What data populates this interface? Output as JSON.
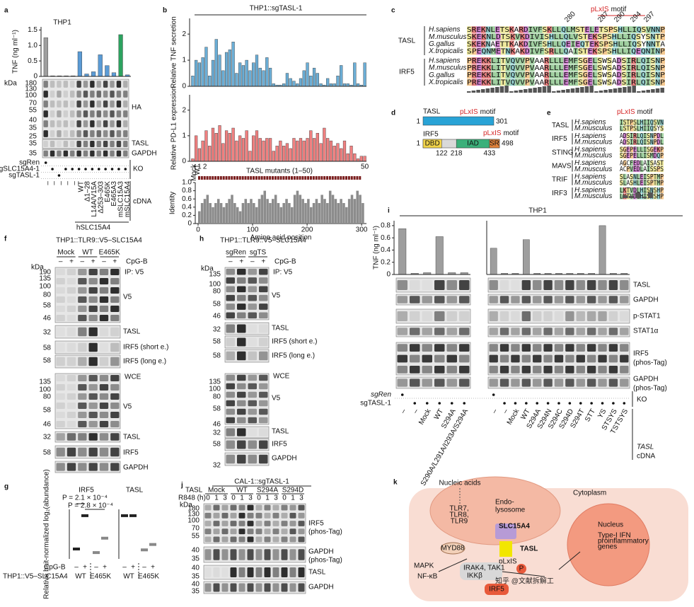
{
  "a": {
    "label": "a",
    "title": "THP1",
    "y_label": "TNF (ng ml⁻¹)",
    "ylim": [
      0,
      1.6
    ],
    "yticks": [
      0,
      0.5,
      {
        "value": 1,
        "label": "1.0"
      },
      1.5
    ],
    "values": [
      1.25,
      0.02,
      0.02,
      0.02,
      0.02,
      0.8,
      0.08,
      0.15,
      0.7,
      0.35,
      0.12,
      1.35,
      0.05
    ],
    "colors": [
      "#9e9e9e",
      "#9e9e9e",
      "#9e9e9e",
      "#9e9e9e",
      "#9e9e9e",
      "#5b9bd5",
      "#5b9bd5",
      "#5b9bd5",
      "#5b9bd5",
      "#5b9bd5",
      "#5b9bd5",
      "#2ca25f",
      "#5b9bd5"
    ],
    "kda": "kDa",
    "markers": [
      180,
      130,
      100,
      70,
      55,
      40,
      35,
      25,
      35,
      35
    ],
    "blots": [
      "HA",
      "TASL",
      "GAPDH"
    ],
    "rows": [
      "sgRen",
      "sgSLC15A4-1",
      "sgTASL-1"
    ],
    "ko": "KO",
    "cdna": "cDNA",
    "cdna_labels": [
      "–",
      "–",
      "–",
      "–",
      "–",
      "WT",
      "Δ1–28",
      "L14A/V15A",
      "Δ253–303",
      "E465K",
      "E465A3",
      "mSLC15A3",
      "mSLC15A4"
    ],
    "group": "hSLC15A4"
  },
  "b": {
    "label": "b",
    "title": "THP1::sgTASL-1",
    "tnf_label": "Relative TNF secretion",
    "pdl1_label": "Relative PD-L1 expression",
    "ylim": [
      0,
      2.6
    ],
    "yticks": [
      0,
      1,
      2
    ],
    "tnf": [
      0.4,
      1.0,
      0.9,
      1.1,
      1.5,
      0.4,
      1.0,
      1.8,
      1.2,
      0.6,
      1.3,
      1.4,
      1.7,
      0.5,
      0.9,
      0.8,
      1.0,
      0.6,
      0.9,
      1.2,
      0.7,
      0.6,
      1.1,
      0.7,
      0.1,
      0.05,
      0.05,
      0.1,
      0.5,
      0.3,
      0.2,
      0.1,
      0.3,
      0.6,
      0.9,
      0.4,
      0.7,
      0.5,
      0.1,
      0.05,
      0.3,
      0.1,
      0.1,
      0.4,
      0.8,
      0.1,
      0.1,
      0.05,
      0.9,
      0.1,
      0.05,
      0.9
    ],
    "pdl1": [
      0.1,
      1.0,
      0.5,
      0.8,
      1.2,
      0.6,
      1.3,
      1.1,
      1.4,
      0.7,
      1.2,
      1.1,
      1.3,
      0.8,
      1.0,
      0.9,
      1.2,
      0.4,
      1.0,
      1.2,
      0.9,
      0.8,
      0.9,
      0.9,
      0.4,
      0.6,
      0.8,
      0.6,
      0.7,
      0.5,
      0.9,
      0.8,
      0.9,
      0.8,
      0.9,
      1.2,
      0.9,
      1.1,
      0.7,
      1.3,
      0.9,
      0.8,
      0.6,
      0.7,
      0.5,
      0.8,
      0.3,
      0.6,
      0.3,
      0.1,
      0.2,
      0.2
    ],
    "tnf_color": "#6baed6",
    "pdl1_color": "#f08080",
    "x_labels": [
      "Mock",
      "WT",
      "1",
      "2",
      "50"
    ],
    "mutants": "TASL mutants (1–50)",
    "identity_label": "Identity",
    "identity_ylim": [
      0,
      1
    ],
    "identity_yticks": [
      0,
      0.2,
      0.4,
      0.6,
      0.8,
      {
        "value": 1,
        "label": "1.0"
      }
    ],
    "identity_xlim": [
      0,
      305
    ],
    "identity_xticks": [
      0,
      100,
      200,
      300
    ],
    "identity_xlabel": "Amino acid position",
    "identity_x": [
      0,
      5,
      10,
      15,
      20,
      25,
      30,
      35,
      40,
      45,
      50,
      55,
      60,
      65,
      70,
      75,
      80,
      85,
      90,
      95,
      100,
      105,
      110,
      115,
      120,
      125,
      130,
      135,
      140,
      145,
      150,
      155,
      160,
      165,
      170,
      175,
      180,
      185,
      190,
      195,
      200,
      205,
      210,
      215,
      220,
      225,
      230,
      235,
      240,
      245,
      250,
      255,
      260,
      265,
      270,
      275,
      280,
      285,
      290,
      295,
      300
    ],
    "identity": [
      0.3,
      0.5,
      0.6,
      0.7,
      0.5,
      0.4,
      0.5,
      0.6,
      0.5,
      0.4,
      0.5,
      0.6,
      0.7,
      0.5,
      0.4,
      0.3,
      0.5,
      0.6,
      0.5,
      0.6,
      0.5,
      0.4,
      0.6,
      0.7,
      0.8,
      0.6,
      0.5,
      0.6,
      0.7,
      0.5,
      0.4,
      0.5,
      0.6,
      0.5,
      0.4,
      0.7,
      0.8,
      0.7,
      0.6,
      0.5,
      0.6,
      0.4,
      0.5,
      0.6,
      0.5,
      0.7,
      0.6,
      0.5,
      0.8,
      0.7,
      0.6,
      0.5,
      0.6,
      0.5,
      0.4,
      0.6,
      0.7,
      0.6,
      0.8,
      0.7,
      0.5
    ]
  },
  "c": {
    "label": "c",
    "motif_prefix": "pLxIS",
    "motif_word": "motif",
    "positions": [
      280,
      287,
      290,
      294,
      297
    ],
    "groups": [
      "TASL",
      "IRF5"
    ],
    "species": [
      "H.sapiens",
      "M.musculus",
      "G.gallus",
      "X.tropicalis",
      "H.sapiens",
      "M.musculus",
      "G.gallus",
      "X.tropicalis"
    ],
    "sequences": [
      "SREKNLETSKARDIVFSKLLQLMSTELETSPSHLLIQSVNNP",
      "SKEKNLDTSKVKDIVISHLLQLVSTEKSPSHLLIQSYSNTP",
      "SKEKNAETTKAKDIVFSHLLQEIEQTEKSPSHLLIQSYNNTA",
      "SPEQNMETNKAKDIVFSRLLQAISTEKSPSHLLIQEQNINP",
      "PREKKLITVQVVPVAARLLLEMFSGELSWSADSIRLQISNP",
      "PREKKLITVQVVPVAARLLLEMFSGELSWSADSIRLQISNP",
      "PREKKLITVQVVPVAARLLLEMFSGELSWSADSIRLQISNP",
      "PREKKLITVQVVPVAARLLLEMFSGELSWSADSIRLQISNP"
    ]
  },
  "d": {
    "label": "d",
    "tasl": "TASL",
    "irf5": "IRF5",
    "motif_prefix": "pLxIS",
    "motif_word": "motif",
    "start": 1,
    "tasl_end": 301,
    "irf5_end": 498,
    "domains": [
      "DBD",
      "IAD",
      "SR"
    ],
    "bounds": [
      122,
      218,
      433
    ]
  },
  "e": {
    "label": "e",
    "motif_prefix": "pLxIS",
    "motif_word": "motif",
    "groups": [
      "TASL",
      "IRF5",
      "STING",
      "MAVS",
      "TRIF",
      "IRF3"
    ],
    "species": [
      "H.sapiens",
      "M.musculus",
      "H.sapiens",
      "M.musculus",
      "H.sapiens",
      "M.musculus",
      "H.sapiens",
      "M.musculus",
      "H.sapiens",
      "M.musculus",
      "H.sapiens",
      "M.musculus"
    ],
    "sequences": [
      "ISTPSLHIIQSVN",
      "LSTPSLHIIQSYS",
      "ADSIRLQISNPDL",
      "ADSIRLQISNPDL",
      "SGEPELLISGEKP",
      "SGEPELLISMDQP",
      "AGCFEDLAISAST",
      "ACPVEDLAISSPS",
      "SLASNLEISPTMP",
      "SLASHLEISPTMP",
      "LKTVDLHISNSHP",
      "LKTVDLHISNSHP"
    ]
  },
  "f": {
    "label": "f",
    "title": "THP1::TLR9::V5–SLC15A4",
    "groups": [
      "Mock",
      "WT",
      "E465K"
    ],
    "treatment": "CpG-B",
    "lanes": [
      "–",
      "+",
      "–",
      "+",
      "–",
      "+"
    ],
    "kda": "kDa",
    "markers": [
      190,
      135,
      100,
      80,
      58,
      46,
      32,
      58,
      58,
      135,
      100,
      80,
      58,
      46,
      32,
      58
    ],
    "ip": "IP: V5",
    "wce": "WCE",
    "blots": [
      "V5",
      "TASL",
      "IRF5 (short e.)",
      "IRF5 (long e.)",
      "V5",
      "TASL",
      "IRF5",
      "GAPDH"
    ]
  },
  "g": {
    "label": "g",
    "titles": [
      "IRF5",
      "TASL"
    ],
    "y_label": "Relative bait-normalized log₂(abundance)",
    "p_values": [
      "P = 2.1 × 10⁻⁴",
      "P = 2.8 × 10⁻⁴"
    ],
    "ylim": [
      -1,
      4.5
    ],
    "irf5": [
      0.1,
      3.8,
      -0.3,
      1.3
    ],
    "tasl": [
      3.8,
      3.8,
      0,
      0.6
    ],
    "treatment": "CpG-B",
    "lanes": [
      "–",
      "+",
      "–",
      "+",
      "–",
      "+",
      "–",
      "+"
    ],
    "cell": "THP1::V5–SLC15A4",
    "groups": [
      "WT",
      "E465K",
      "WT",
      "E465K"
    ]
  },
  "h": {
    "label": "h",
    "title": "THP1::TLR9::V5–SLC15A4",
    "groups": [
      "sgRen",
      "sgTS"
    ],
    "treatment": "CpG-B",
    "lanes": [
      "–",
      "+",
      "–",
      "+"
    ],
    "kda": "kDa",
    "markers": [
      135,
      100,
      80,
      58,
      46,
      32,
      58,
      58,
      135,
      100,
      80,
      58,
      46,
      32,
      58,
      32
    ],
    "ip": "IP: V5",
    "wce": "WCE",
    "blots": [
      "V5",
      "TASL",
      "IRF5 (short e.)",
      "IRF5 (long e.)",
      "V5",
      "TASL",
      "IRF5",
      "GAPDH"
    ]
  },
  "i": {
    "label": "i",
    "title": "THP1",
    "y_label": "TNF (ng ml⁻¹)",
    "ylim": [
      0,
      0.88
    ],
    "yticks": [
      0,
      0.2,
      0.4,
      0.6,
      0.8
    ],
    "color": "#9e9e9e",
    "left_values": [
      0.75,
      0.02,
      0.03,
      0.62,
      0.03,
      0.03
    ],
    "right_values": [
      0.43,
      0.02,
      0.02,
      0.57,
      0.02,
      0.02,
      0.02,
      0.02,
      0.02,
      0.02,
      0.8,
      0.02,
      0.02
    ],
    "left_labels": [
      "–",
      "–",
      "Mock",
      "WT",
      "S294A",
      "S290A/L291A/I293A/S294A"
    ],
    "right_labels": [
      "–",
      "–",
      "Mock",
      "WT",
      "S294A",
      "S294N",
      "S294C",
      "S294D",
      "S294T",
      "STT",
      "YS",
      "STSYS",
      "TSTSYS"
    ],
    "blots": [
      "TASL",
      "GAPDH",
      "p-STAT1",
      "STAT1α",
      "IRF5",
      "(phos-Tag)",
      "GAPDH",
      "(phos-Tag)"
    ],
    "rows": [
      "sgRen",
      "sgTASL-1"
    ],
    "ko": "KO",
    "cdna_gene": "TASL",
    "cdna": "cDNA"
  },
  "j": {
    "label": "j",
    "title": "CAL-1::sgTASL-1",
    "gene": "TASL",
    "groups": [
      "Mock",
      "WT",
      "S294A",
      "S294D"
    ],
    "treatment": "R848 (h)",
    "times": [
      0,
      1,
      3
    ],
    "kda": "kDa",
    "markers": [
      180,
      130,
      100,
      70,
      55,
      40,
      35,
      40,
      35,
      40,
      35
    ],
    "blots": [
      "IRF5",
      "(phos-Tag)",
      "GAPDH",
      "(phos-Tag)",
      "TASL",
      "GAPDH"
    ]
  },
  "k": {
    "label": "k",
    "nucleic": "Nucleic acids",
    "tlr": [
      "TLR7,",
      "TLR8,",
      "TLR9"
    ],
    "endo": [
      "Endo-",
      "lysosome"
    ],
    "cytoplasm": "Cytoplasm",
    "slc": "SLC15A4",
    "tasl": "TASL",
    "motif": "pLxIS",
    "myd88": "MYD88",
    "mapk": "MAPK",
    "nfkb": "NF-κB",
    "irak": [
      "IRAK4, TAK1",
      "IKKβ"
    ],
    "nucleus": "Nucleus",
    "genes": [
      "Type-I IFN",
      "proinflammatory",
      "genes"
    ],
    "irf5": "IRF5",
    "p": "P"
  },
  "watermark": "知乎 @文献拆解工"
}
